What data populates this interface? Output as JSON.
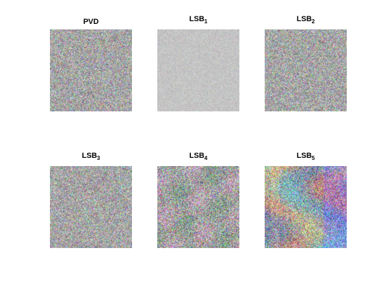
{
  "panels": [
    {
      "title_main": "PVD",
      "title_sub": "",
      "texture": "uniform-noise"
    },
    {
      "title_main": "LSB",
      "title_sub": "1",
      "texture": "faint-noise"
    },
    {
      "title_main": "LSB",
      "title_sub": "2",
      "texture": "uniform-noise"
    },
    {
      "title_main": "LSB",
      "title_sub": "3",
      "texture": "uniform-noise"
    },
    {
      "title_main": "LSB",
      "title_sub": "4",
      "texture": "patterned-noise"
    },
    {
      "title_main": "LSB",
      "title_sub": "5",
      "texture": "structured-image-noise"
    }
  ]
}
